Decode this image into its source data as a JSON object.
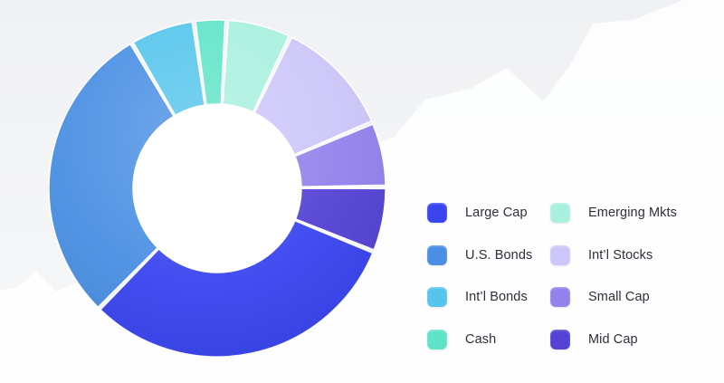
{
  "chart_data": {
    "type": "pie",
    "style": "donut",
    "legend_position": "right",
    "categories": [
      "Large Cap",
      "U.S. Bonds",
      "Int’l Bonds",
      "Cash",
      "Emerging Mkts",
      "Int’l Stocks",
      "Small Cap",
      "Mid Cap"
    ],
    "values": [
      30,
      28,
      6,
      3,
      6,
      11,
      6,
      6
    ],
    "colors": [
      "#3a45f0",
      "#4a8fe3",
      "#55c5ec",
      "#5fe4c8",
      "#a9f0df",
      "#ccc6f9",
      "#9382ec",
      "#5342d4"
    ]
  }
}
